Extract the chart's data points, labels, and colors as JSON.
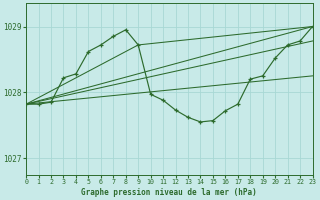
{
  "title": "Graphe pression niveau de la mer (hPa)",
  "bg_color": "#c8eae8",
  "grid_color": "#a8d8d4",
  "line_color": "#2d6b2d",
  "xlim": [
    0,
    23
  ],
  "ylim": [
    1026.75,
    1029.35
  ],
  "yticks": [
    1027,
    1028,
    1029
  ],
  "xticks": [
    0,
    1,
    2,
    3,
    4,
    5,
    6,
    7,
    8,
    9,
    10,
    11,
    12,
    13,
    14,
    15,
    16,
    17,
    18,
    19,
    20,
    21,
    22,
    23
  ],
  "main_x": [
    0,
    1,
    2,
    3,
    4,
    5,
    6,
    7,
    8,
    9,
    10,
    11,
    12,
    13,
    14,
    15,
    16,
    17,
    18,
    19,
    20,
    21,
    22,
    23
  ],
  "main_y": [
    1027.82,
    1027.82,
    1027.85,
    1028.22,
    1028.28,
    1028.62,
    1028.72,
    1028.85,
    1028.95,
    1028.72,
    1027.97,
    1027.88,
    1027.73,
    1027.62,
    1027.55,
    1027.57,
    1027.72,
    1027.82,
    1028.2,
    1028.25,
    1028.52,
    1028.72,
    1028.78,
    1029.0
  ],
  "trend_lines": [
    {
      "x": [
        0,
        23
      ],
      "y": [
        1027.82,
        1029.0
      ]
    },
    {
      "x": [
        0,
        23
      ],
      "y": [
        1027.82,
        1028.78
      ]
    },
    {
      "x": [
        0,
        23
      ],
      "y": [
        1027.82,
        1028.25
      ]
    },
    {
      "x": [
        0,
        9,
        23
      ],
      "y": [
        1027.82,
        1028.72,
        1029.0
      ]
    }
  ]
}
